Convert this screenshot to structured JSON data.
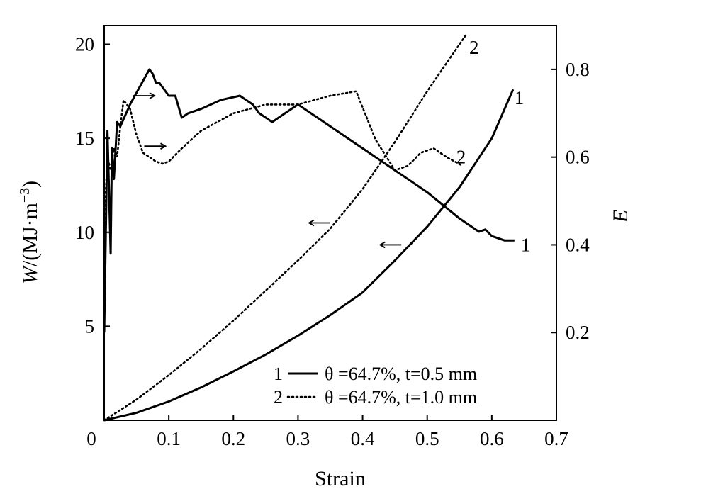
{
  "chart_data": {
    "type": "line",
    "xlabel": "Strain",
    "ylabel_prefix": "W",
    "ylabel_unit": "/(MJ·m",
    "ylabel_exp": "−3",
    "ylabel_close": ")",
    "y2label": "E",
    "xlim": [
      0,
      0.7
    ],
    "ylim": [
      0,
      21
    ],
    "y2lim": [
      0,
      0.9
    ],
    "xticks": [
      {
        "v": 0.1,
        "label": "0.1"
      },
      {
        "v": 0.2,
        "label": "0.2"
      },
      {
        "v": 0.3,
        "label": "0.3"
      },
      {
        "v": 0.4,
        "label": "0.4"
      },
      {
        "v": 0.5,
        "label": "0.5"
      },
      {
        "v": 0.6,
        "label": "0.6"
      },
      {
        "v": 0.7,
        "label": "0.7"
      }
    ],
    "origin_label": "0",
    "yticks": [
      {
        "v": 5,
        "label": "5"
      },
      {
        "v": 10,
        "label": "10"
      },
      {
        "v": 15,
        "label": "15"
      },
      {
        "v": 20,
        "label": "20"
      }
    ],
    "y2ticks": [
      {
        "v": 0.2,
        "label": "0.2"
      },
      {
        "v": 0.4,
        "label": "0.4"
      },
      {
        "v": 0.6,
        "label": "0.6"
      },
      {
        "v": 0.8,
        "label": "0.8"
      }
    ],
    "legend": {
      "placement": "bottom-right",
      "items": [
        {
          "id": "1",
          "style": "solid",
          "text": "θ =64.7%, t=0.5 mm"
        },
        {
          "id": "2",
          "style": "dotted",
          "text": "θ =64.7%, t=1.0 mm"
        }
      ]
    },
    "series": [
      {
        "label": "1",
        "axis": "left",
        "style": "solid",
        "x": [
          0,
          0.05,
          0.1,
          0.15,
          0.2,
          0.25,
          0.3,
          0.35,
          0.4,
          0.45,
          0.5,
          0.55,
          0.6,
          0.633
        ],
        "y": [
          0,
          0.4,
          1.0,
          1.75,
          2.6,
          3.5,
          4.5,
          5.6,
          6.8,
          8.5,
          10.3,
          12.4,
          15.0,
          17.6
        ]
      },
      {
        "label": "1",
        "axis": "right",
        "style": "solid",
        "x": [
          0,
          0.005,
          0.01,
          0.012,
          0.015,
          0.02,
          0.025,
          0.04,
          0.055,
          0.07,
          0.075,
          0.08,
          0.085,
          0.09,
          0.1,
          0.11,
          0.12,
          0.13,
          0.15,
          0.18,
          0.21,
          0.22,
          0.23,
          0.24,
          0.26,
          0.28,
          0.3,
          0.33,
          0.36,
          0.4,
          0.45,
          0.5,
          0.55,
          0.58,
          0.59,
          0.6,
          0.62,
          0.635
        ],
        "y": [
          0.2,
          0.66,
          0.38,
          0.62,
          0.55,
          0.68,
          0.67,
          0.72,
          0.76,
          0.8,
          0.79,
          0.77,
          0.77,
          0.76,
          0.74,
          0.74,
          0.69,
          0.7,
          0.71,
          0.73,
          0.74,
          0.73,
          0.72,
          0.7,
          0.68,
          0.7,
          0.72,
          0.69,
          0.66,
          0.62,
          0.57,
          0.52,
          0.46,
          0.43,
          0.435,
          0.42,
          0.41,
          0.41
        ]
      },
      {
        "label": "2",
        "axis": "left",
        "style": "dotted",
        "x": [
          0,
          0.05,
          0.1,
          0.15,
          0.2,
          0.25,
          0.3,
          0.35,
          0.4,
          0.45,
          0.5,
          0.56
        ],
        "y": [
          0,
          1.1,
          2.4,
          3.8,
          5.3,
          6.9,
          8.5,
          10.2,
          12.3,
          14.8,
          17.5,
          20.5
        ]
      },
      {
        "label": "2",
        "axis": "right",
        "style": "dotted",
        "x": [
          0,
          0.005,
          0.01,
          0.015,
          0.02,
          0.025,
          0.03,
          0.04,
          0.05,
          0.06,
          0.07,
          0.08,
          0.09,
          0.1,
          0.12,
          0.15,
          0.2,
          0.25,
          0.3,
          0.35,
          0.39,
          0.42,
          0.45,
          0.47,
          0.49,
          0.51,
          0.53,
          0.555
        ],
        "y": [
          0.45,
          0.6,
          0.57,
          0.62,
          0.6,
          0.67,
          0.73,
          0.71,
          0.65,
          0.61,
          0.6,
          0.59,
          0.585,
          0.59,
          0.62,
          0.66,
          0.7,
          0.72,
          0.72,
          0.74,
          0.75,
          0.64,
          0.57,
          0.58,
          0.61,
          0.62,
          0.6,
          0.58
        ]
      }
    ],
    "annotations": [
      {
        "type": "curve-label",
        "text": "2",
        "x": 0.565,
        "y2": 0.85
      },
      {
        "type": "curve-label",
        "text": "1",
        "x": 0.635,
        "y2": 0.735
      },
      {
        "type": "curve-label",
        "text": "2",
        "x": 0.545,
        "y2": 0.6
      },
      {
        "type": "curve-label",
        "text": "1",
        "x": 0.645,
        "y2": 0.4
      },
      {
        "type": "arrow",
        "dir": "right",
        "x": 0.045,
        "y2": 0.74
      },
      {
        "type": "arrow",
        "dir": "right",
        "x": 0.062,
        "y2": 0.625
      },
      {
        "type": "arrow",
        "dir": "left",
        "x": 0.35,
        "y2": 0.45
      },
      {
        "type": "arrow",
        "dir": "left",
        "x": 0.46,
        "y2": 0.4
      }
    ]
  }
}
